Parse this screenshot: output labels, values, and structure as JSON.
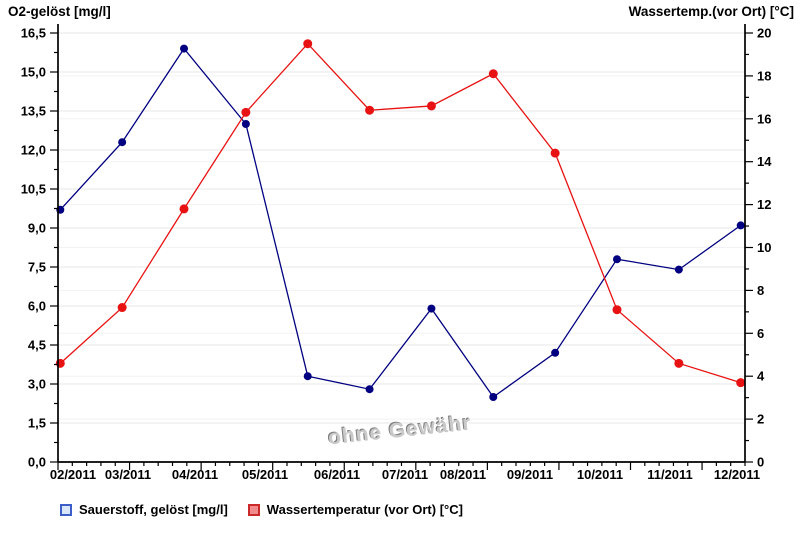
{
  "watermark": "ohne Gewähr",
  "legend": [
    {
      "label": "Sauerstoff, gelöst [mg/l]",
      "fill": "#dbe6fa",
      "border": "#3a5fc8"
    },
    {
      "label": "Wassertemperatur (vor Ort) [°C]",
      "fill": "#f28c8c",
      "border": "#cc2a2a"
    }
  ],
  "chart_data": {
    "type": "line",
    "title": "",
    "x_axis": {
      "tick_labels": [
        "02/2011",
        "03/2011",
        "04/2011",
        "05/2011",
        "06/2011",
        "07/2011",
        "08/2011",
        "09/2011",
        "10/2011",
        "11/2011",
        "12/2011"
      ],
      "note_points_evenly_spaced": true
    },
    "left_axis": {
      "title": "O2-gelöst [mg/l]",
      "min": 0,
      "max": 16.5,
      "step": 1.5,
      "tick_labels": [
        "0,0",
        "1,5",
        "3,0",
        "4,5",
        "6,0",
        "7,5",
        "9,0",
        "10,5",
        "12,0",
        "13,5",
        "15,0",
        "16,5"
      ]
    },
    "right_axis": {
      "title": "Wassertemp.(vor Ort) [°C]",
      "min": 0,
      "max": 20,
      "step": 2,
      "tick_labels": [
        "0",
        "2",
        "4",
        "6",
        "8",
        "10",
        "12",
        "14",
        "16",
        "18",
        "20"
      ]
    },
    "series": [
      {
        "name": "Sauerstoff, gelöst [mg/l]",
        "axis": "left",
        "color": "#000080",
        "point_radius": 4,
        "values": [
          9.7,
          12.3,
          15.9,
          13.0,
          3.3,
          2.8,
          5.9,
          2.5,
          4.2,
          7.8,
          7.4,
          9.1
        ]
      },
      {
        "name": "Wassertemperatur (vor Ort) [°C]",
        "axis": "right",
        "color": "#e81212",
        "point_radius": 4.5,
        "values": [
          4.6,
          7.2,
          11.8,
          16.3,
          19.5,
          16.4,
          16.6,
          18.1,
          14.4,
          7.1,
          4.6,
          3.7
        ]
      }
    ],
    "grid": true,
    "legend_position": "bottom-left"
  }
}
